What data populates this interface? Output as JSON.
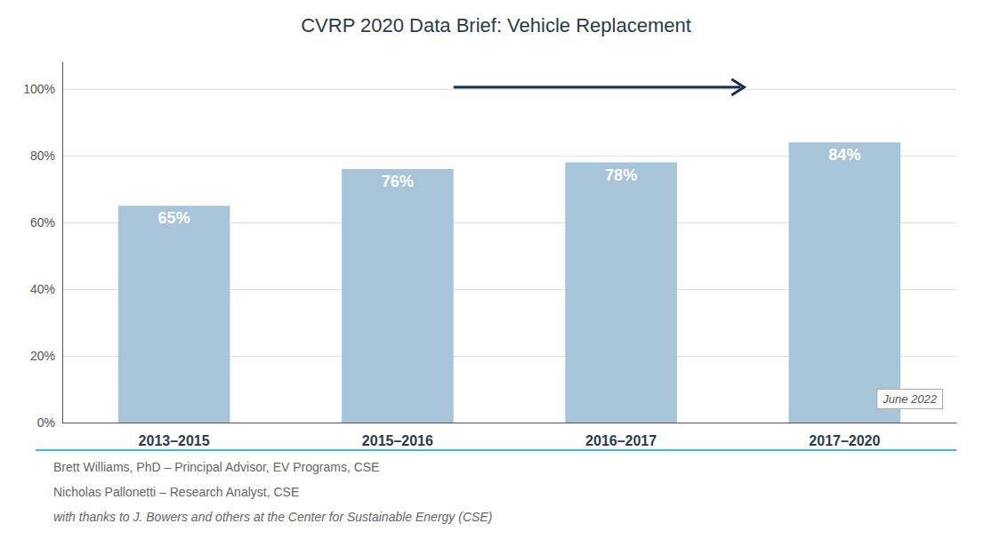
{
  "chart_data": {
    "type": "bar",
    "title": "CVRP 2020 Data Brief: Vehicle Replacement",
    "categories": [
      "2013–2015",
      "2015–2016",
      "2016–2017",
      "2017–2020"
    ],
    "values": [
      0.65,
      0.76,
      0.78,
      0.84
    ],
    "value_labels": [
      "65%",
      "76%",
      "78%",
      "84%"
    ],
    "data_labels": true,
    "color": "#a8c4d8",
    "ylim": [
      0,
      1.08
    ],
    "yticks": [
      {
        "value": 0.0,
        "label": "0%"
      },
      {
        "value": 0.2,
        "label": "20%"
      },
      {
        "value": 0.4,
        "label": "40%"
      },
      {
        "value": 0.6,
        "label": "60%"
      },
      {
        "value": 0.8,
        "label": "80%"
      },
      {
        "value": 1.0,
        "label": "100%"
      }
    ],
    "grid": true,
    "annotations": [
      "June 2022",
      "Brett Williams, PhD – Principal Advisor, EV Programs, CSE",
      "Nicholas Pallonetti – Research Analyst, CSE",
      "with thanks to J. Bowers and others at the Center for Sustainable Energy (CSE)"
    ]
  }
}
